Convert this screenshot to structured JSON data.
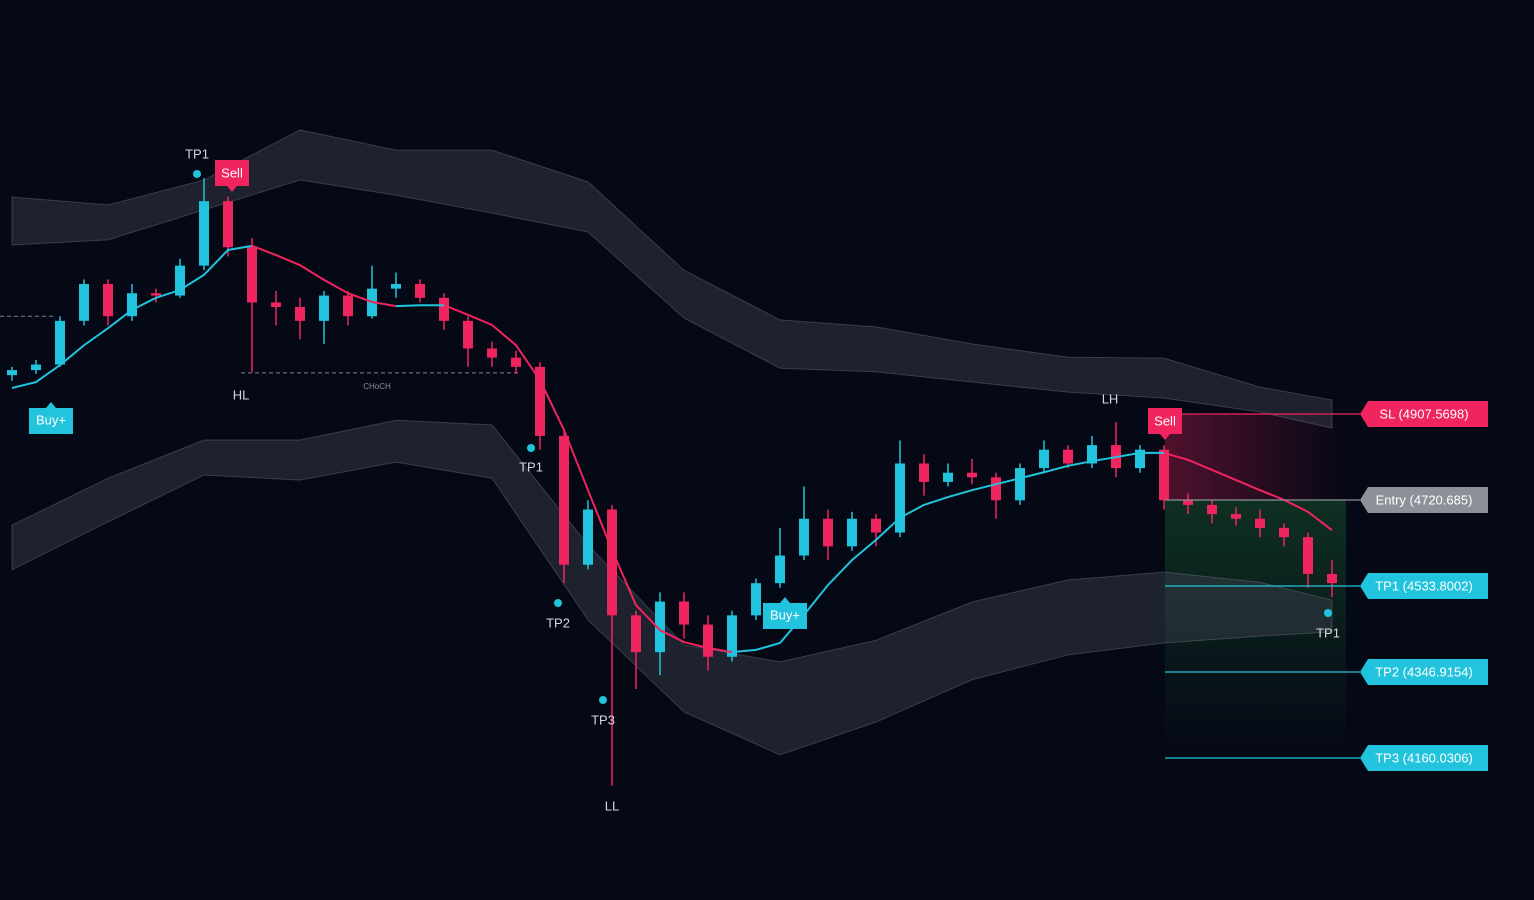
{
  "chart_data": {
    "type": "candlestick",
    "up_color": "#22c3dc",
    "down_color": "#f0245f",
    "candles": [
      [
        4992,
        5010,
        4980,
        5003
      ],
      [
        5003,
        5025,
        4995,
        5015
      ],
      [
        5015,
        5120,
        5010,
        5110
      ],
      [
        5110,
        5200,
        5100,
        5190
      ],
      [
        5190,
        5200,
        5100,
        5120
      ],
      [
        5120,
        5190,
        5110,
        5170
      ],
      [
        5170,
        5180,
        5150,
        5165
      ],
      [
        5165,
        5245,
        5160,
        5230
      ],
      [
        5230,
        5420,
        5220,
        5370
      ],
      [
        5370,
        5380,
        5250,
        5270
      ],
      [
        5270,
        5290,
        4998,
        5150
      ],
      [
        5150,
        5175,
        5100,
        5140
      ],
      [
        5140,
        5160,
        5070,
        5110
      ],
      [
        5110,
        5175,
        5060,
        5165
      ],
      [
        5165,
        5175,
        5100,
        5120
      ],
      [
        5120,
        5230,
        5115,
        5180
      ],
      [
        5180,
        5215,
        5160,
        5190
      ],
      [
        5190,
        5200,
        5150,
        5160
      ],
      [
        5160,
        5170,
        5090,
        5110
      ],
      [
        5110,
        5120,
        5010,
        5050
      ],
      [
        5050,
        5065,
        5010,
        5030
      ],
      [
        5030,
        5045,
        4995,
        5010
      ],
      [
        5010,
        5020,
        4830,
        4860
      ],
      [
        4860,
        4870,
        4540,
        4580
      ],
      [
        4580,
        4720,
        4570,
        4700
      ],
      [
        4700,
        4710,
        4100,
        4470
      ],
      [
        4470,
        4480,
        4310,
        4390
      ],
      [
        4390,
        4520,
        4340,
        4500
      ],
      [
        4500,
        4520,
        4420,
        4450
      ],
      [
        4450,
        4470,
        4350,
        4380
      ],
      [
        4380,
        4480,
        4370,
        4470
      ],
      [
        4470,
        4550,
        4460,
        4540
      ],
      [
        4540,
        4660,
        4530,
        4600
      ],
      [
        4600,
        4750,
        4590,
        4680
      ],
      [
        4680,
        4700,
        4590,
        4620
      ],
      [
        4620,
        4695,
        4610,
        4680
      ],
      [
        4680,
        4690,
        4620,
        4650
      ],
      [
        4650,
        4850,
        4640,
        4800
      ],
      [
        4800,
        4820,
        4730,
        4760
      ],
      [
        4760,
        4800,
        4750,
        4780
      ],
      [
        4780,
        4810,
        4755,
        4770
      ],
      [
        4770,
        4780,
        4680,
        4720
      ],
      [
        4720,
        4800,
        4710,
        4790
      ],
      [
        4790,
        4850,
        4780,
        4830
      ],
      [
        4830,
        4840,
        4790,
        4800
      ],
      [
        4800,
        4860,
        4790,
        4840
      ],
      [
        4840,
        4890,
        4770,
        4790
      ],
      [
        4790,
        4840,
        4780,
        4830
      ],
      [
        4830,
        4840,
        4700,
        4720
      ],
      [
        4720,
        4735,
        4690,
        4710
      ],
      [
        4710,
        4720,
        4670,
        4690
      ],
      [
        4690,
        4705,
        4665,
        4680
      ],
      [
        4680,
        4700,
        4640,
        4660
      ],
      [
        4660,
        4670,
        4620,
        4640
      ],
      [
        4640,
        4650,
        4530,
        4560
      ],
      [
        4560,
        4590,
        4510,
        4540
      ]
    ],
    "ma": [
      4964,
      4977,
      5014,
      5057,
      5094,
      5134,
      5160,
      5177,
      5210,
      5264,
      5273,
      5253,
      5231,
      5199,
      5170,
      5151,
      5142,
      5144,
      5144,
      5123,
      5101,
      5057,
      4981,
      4873,
      4742,
      4612,
      4492,
      4438,
      4412,
      4399,
      4390,
      4395,
      4410,
      4471,
      4536,
      4590,
      4634,
      4682,
      4710,
      4727,
      4742,
      4755,
      4768,
      4781,
      4795,
      4805,
      4814,
      4823,
      4823,
      4808,
      4786,
      4764,
      4742,
      4721,
      4695,
      4655
    ],
    "band_index": [
      0,
      4,
      8,
      12,
      16,
      20,
      24,
      28,
      32,
      36,
      40,
      44,
      48,
      52,
      55
    ],
    "upper_band_outer": [
      5379,
      5362,
      5416,
      5525,
      5481,
      5481,
      5412,
      5220,
      5112,
      5097,
      5060,
      5031,
      5029,
      4966,
      4938
    ],
    "upper_band_inner": [
      5275,
      5286,
      5351,
      5416,
      5383,
      5344,
      5303,
      5116,
      5007,
      4999,
      4977,
      4955,
      4942,
      4912,
      4877
    ],
    "lower_band_inner": [
      4666,
      4768,
      4851,
      4851,
      4894,
      4884,
      4623,
      4406,
      4369,
      4416,
      4499,
      4547,
      4564,
      4542,
      4503
    ],
    "lower_band_outer": [
      4569,
      4673,
      4775,
      4764,
      4803,
      4768,
      4460,
      4260,
      4167,
      4238,
      4330,
      4384,
      4410,
      4425,
      4434
    ],
    "dashed_levels": [
      5120,
      4997
    ],
    "levels": [
      {
        "name": "SL",
        "value": 4907.5698,
        "label": "SL (4907.5698)",
        "color": "#f0245f"
      },
      {
        "name": "Entry",
        "value": 4720.685,
        "label": "Entry (4720.685)",
        "color": "#8d9099"
      },
      {
        "name": "TP1",
        "value": 4533.8002,
        "label": "TP1 (4533.8002)",
        "color": "#22c3dc"
      },
      {
        "name": "TP2",
        "value": 4346.9154,
        "label": "TP2 (4346.9154)",
        "color": "#22c3dc"
      },
      {
        "name": "TP3",
        "value": 4160.0306,
        "label": "TP3 (4160.0306)",
        "color": "#22c3dc"
      }
    ],
    "annotations": [
      "TP1",
      "Sell",
      "Buy+",
      "HL",
      "CHoCH",
      "TP1",
      "TP2",
      "TP3",
      "LL",
      "Buy+",
      "LH",
      "Sell",
      "TP1"
    ]
  }
}
